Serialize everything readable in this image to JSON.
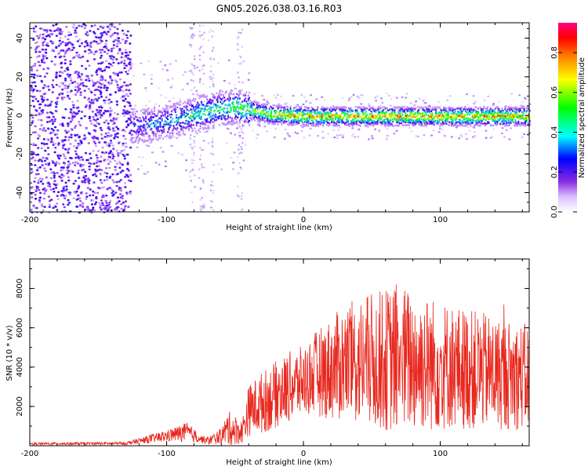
{
  "figure_title": "GN05.2026.038.03.16.R03",
  "colors": {
    "snr_line": "#e8281e",
    "axis": "#000000"
  },
  "colorbar": {
    "label": "Normalized spectral amplitude",
    "ticks": [
      "0.0",
      "0.2",
      "0.4",
      "0.6",
      "0.8"
    ]
  },
  "chart_data": [
    {
      "type": "heatmap",
      "title": "GN05.2026.038.03.16.R03",
      "xlabel": "Height of straight line (km)",
      "ylabel": "Frequency (Hz)",
      "xlim": [
        -200,
        165
      ],
      "ylim": [
        -50,
        48
      ],
      "xticks": [
        -200,
        -100,
        0,
        100
      ],
      "yticks": [
        -40,
        -20,
        0,
        20,
        40
      ],
      "colorbar_range": [
        0,
        0.95
      ],
      "description_points": [
        {
          "x": -200,
          "f": 0,
          "amp": 0.1
        },
        {
          "x": -125,
          "f": -5,
          "amp": 0.35
        },
        {
          "x": -100,
          "f": -3,
          "amp": 0.45
        },
        {
          "x": -75,
          "f": 2,
          "amp": 0.55
        },
        {
          "x": -50,
          "f": 5,
          "amp": 0.6
        },
        {
          "x": -25,
          "f": 1,
          "amp": 0.8
        },
        {
          "x": 0,
          "f": 0,
          "amp": 0.85
        },
        {
          "x": 50,
          "f": 0,
          "amp": 0.85
        },
        {
          "x": 100,
          "f": 0,
          "amp": 0.85
        },
        {
          "x": 165,
          "f": 0,
          "amp": 0.85
        }
      ]
    },
    {
      "type": "line",
      "title": "",
      "xlabel": "Height of straight line (km)",
      "ylabel": "SNR (10 * v/v)",
      "xlim": [
        -200,
        165
      ],
      "ylim": [
        0,
        9500
      ],
      "xticks": [
        -200,
        -100,
        0,
        100
      ],
      "yticks": [
        2000,
        4000,
        6000,
        8000
      ],
      "envelope": {
        "x": [
          -200,
          -130,
          -120,
          -100,
          -85,
          -75,
          -70,
          -60,
          -55,
          -45,
          -40,
          -30,
          -20,
          -10,
          0,
          10,
          20,
          30,
          50,
          70,
          90,
          110,
          130,
          150,
          165
        ],
        "mean": [
          100,
          120,
          250,
          500,
          700,
          350,
          250,
          500,
          900,
          700,
          1800,
          2200,
          2600,
          3000,
          3300,
          3700,
          3900,
          4200,
          4300,
          4400,
          4200,
          4000,
          3800,
          3600,
          3500
        ],
        "amp": [
          60,
          80,
          150,
          300,
          500,
          200,
          200,
          400,
          900,
          600,
          1300,
          1600,
          1700,
          1800,
          1800,
          2200,
          2600,
          3000,
          3500,
          3800,
          3500,
          3200,
          3000,
          2800,
          2700
        ]
      }
    }
  ]
}
